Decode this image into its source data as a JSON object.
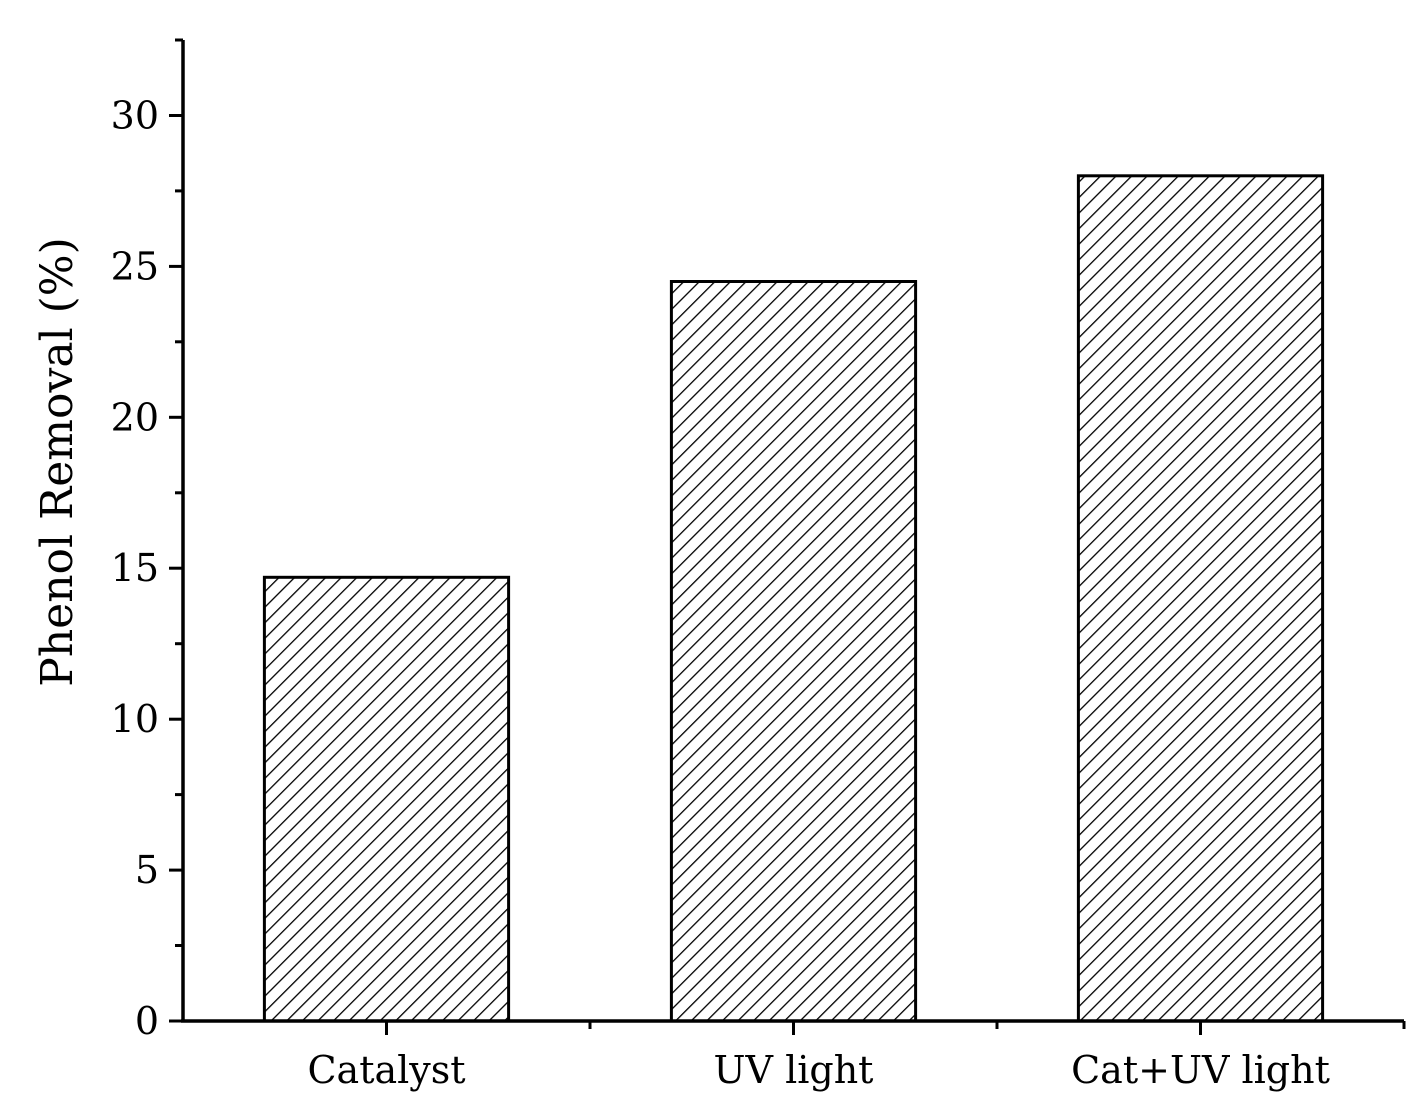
{
  "chart_data": {
    "type": "bar",
    "categories": [
      "Catalyst",
      "UV light",
      "Cat+UV light"
    ],
    "values": [
      14.7,
      24.5,
      28.0
    ],
    "title": "",
    "xlabel": "",
    "ylabel": "Phenol Removal (%)",
    "ylim": [
      0,
      32.5
    ],
    "yticks": [
      0,
      5,
      10,
      15,
      20,
      25,
      30
    ],
    "yticks_minor_step": 2.5,
    "bar_fill": "hatched-diagonal",
    "bar_color": "#000000",
    "background": "#ffffff",
    "grid": false,
    "legend": "none"
  }
}
